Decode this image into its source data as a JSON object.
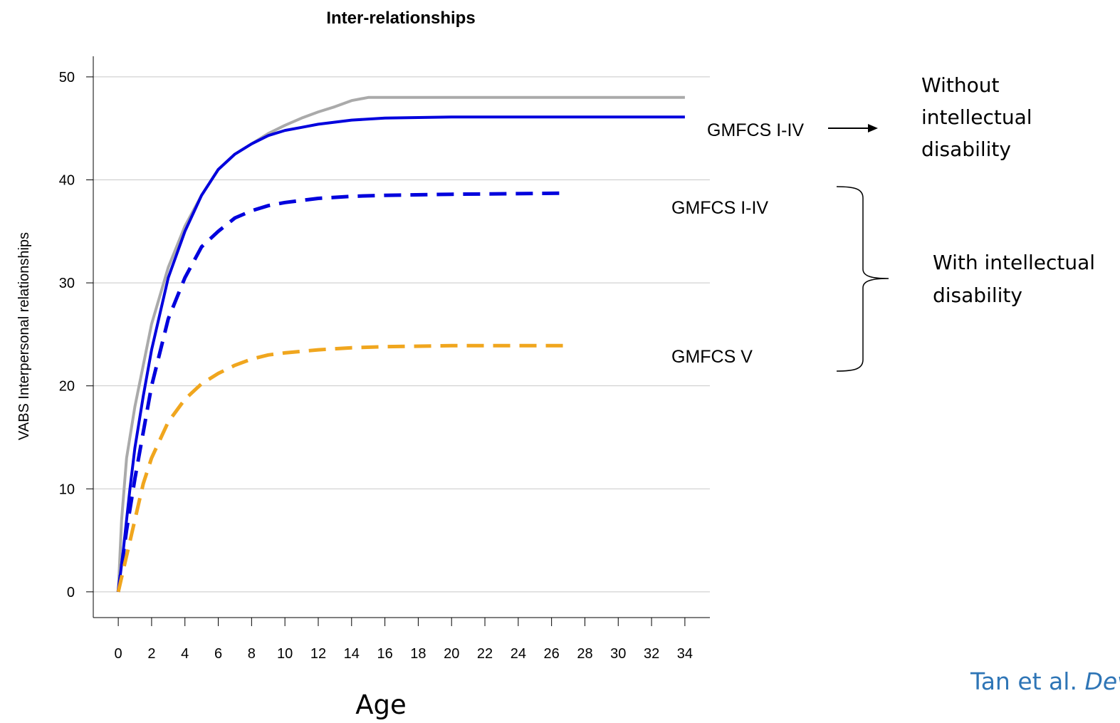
{
  "chart_data": {
    "type": "line",
    "title": "Inter-relationships",
    "xlabel": "Age",
    "ylabel": "VABS Interpersonal relationships",
    "xlim": [
      -1.5,
      35.5
    ],
    "ylim": [
      -2.5,
      52
    ],
    "xticks": [
      0,
      2,
      4,
      6,
      8,
      10,
      12,
      14,
      16,
      18,
      20,
      22,
      24,
      26,
      28,
      30,
      32,
      34
    ],
    "yticks": [
      0,
      10,
      20,
      30,
      40,
      50
    ],
    "grid": "horizontal",
    "series": [
      {
        "color": "#aaaaaa",
        "style": "solid",
        "x": [
          0,
          0.2,
          0.5,
          1,
          1.5,
          2,
          3,
          4,
          5,
          6,
          7,
          8,
          9,
          10,
          11,
          12,
          13,
          14,
          15,
          16,
          20,
          25,
          30,
          34
        ],
        "y": [
          0,
          7,
          13,
          18,
          22,
          26,
          31.5,
          35.5,
          38.5,
          41,
          42.5,
          43.5,
          44.5,
          45.3,
          46,
          46.6,
          47.1,
          47.7,
          48,
          48,
          48,
          48,
          48,
          48
        ]
      },
      {
        "color": "#0000dd",
        "style": "solid",
        "x": [
          0,
          0.3,
          0.7,
          1,
          1.5,
          2,
          3,
          4,
          5,
          6,
          7,
          8,
          9,
          10,
          11,
          12,
          14,
          16,
          20,
          25,
          30,
          34
        ],
        "y": [
          0,
          4,
          10,
          14,
          19,
          23.5,
          30.5,
          35,
          38.5,
          41,
          42.5,
          43.5,
          44.3,
          44.8,
          45.1,
          45.4,
          45.8,
          46,
          46.1,
          46.1,
          46.1,
          46.1
        ]
      },
      {
        "color": "#0000dd",
        "style": "dashed",
        "x": [
          0,
          0.5,
          1,
          1.5,
          2,
          3,
          4,
          5,
          6,
          7,
          8,
          9,
          10,
          12,
          14,
          16,
          20,
          26.5
        ],
        "y": [
          0,
          6,
          11,
          15.5,
          20,
          26.5,
          30.5,
          33.5,
          35,
          36.3,
          37,
          37.5,
          37.8,
          38.2,
          38.4,
          38.5,
          38.6,
          38.7
        ]
      },
      {
        "color": "#f0a61e",
        "style": "dashed",
        "x": [
          0,
          0.5,
          1,
          1.5,
          2,
          3,
          4,
          5,
          6,
          7,
          8,
          9,
          10,
          12,
          14,
          16,
          20,
          27
        ],
        "y": [
          0,
          3.5,
          7,
          10.5,
          13,
          16.5,
          18.7,
          20.2,
          21.2,
          22,
          22.6,
          23,
          23.2,
          23.5,
          23.7,
          23.8,
          23.9,
          23.9
        ]
      }
    ]
  },
  "annotations": {
    "label_solid_blue": "GMFCS I-IV",
    "label_dashed_blue": "GMFCS I-IV",
    "label_dashed_orange": "GMFCS V",
    "without_id_line1": "Without",
    "without_id_line2": "intellectual",
    "without_id_line3": "disability",
    "with_id_line1": "With intellectual",
    "with_id_line2": "disability",
    "citation_plain": "Tan et al. ",
    "citation_italic": "Dev",
    "colors": {
      "citation": "#2e75b6",
      "arrow": "#000000"
    }
  }
}
